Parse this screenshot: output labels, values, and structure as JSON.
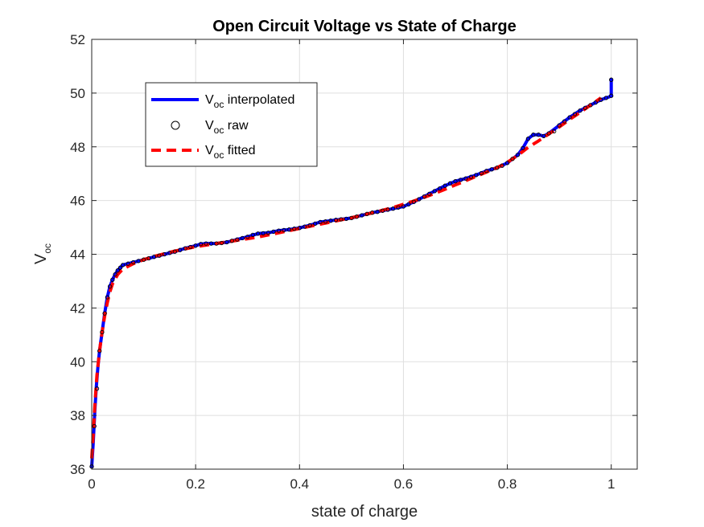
{
  "chart_data": {
    "type": "line",
    "title": "Open Circuit Voltage vs State of Charge",
    "xlabel": "state of charge",
    "ylabel": {
      "main": "V",
      "sub": "oc"
    },
    "xlim": [
      0,
      1.05
    ],
    "ylim": [
      36,
      52
    ],
    "xticks": [
      0,
      0.2,
      0.4,
      0.6,
      0.8,
      1
    ],
    "xtick_labels": [
      "0",
      "0.2",
      "0.4",
      "0.6",
      "0.8",
      "1"
    ],
    "yticks": [
      36,
      38,
      40,
      42,
      44,
      46,
      48,
      50,
      52
    ],
    "ytick_labels": [
      "36",
      "38",
      "40",
      "42",
      "44",
      "46",
      "48",
      "50",
      "52"
    ],
    "grid": true,
    "legend_position": "top-left",
    "series": [
      {
        "name": {
          "main": "V",
          "sub": "oc",
          "rest": " interpolated"
        },
        "style": "solid-line",
        "color": "#0000ff",
        "x": [
          0,
          0.003,
          0.006,
          0.009,
          0.012,
          0.015,
          0.02,
          0.025,
          0.03,
          0.035,
          0.04,
          0.045,
          0.05,
          0.055,
          0.06,
          0.065,
          0.07,
          0.08,
          0.09,
          0.1,
          0.12,
          0.14,
          0.16,
          0.18,
          0.2,
          0.21,
          0.22,
          0.24,
          0.26,
          0.28,
          0.3,
          0.32,
          0.34,
          0.36,
          0.38,
          0.4,
          0.42,
          0.44,
          0.46,
          0.48,
          0.5,
          0.52,
          0.54,
          0.56,
          0.58,
          0.6,
          0.62,
          0.64,
          0.66,
          0.68,
          0.7,
          0.72,
          0.74,
          0.76,
          0.78,
          0.8,
          0.81,
          0.82,
          0.83,
          0.84,
          0.85,
          0.86,
          0.87,
          0.88,
          0.89,
          0.9,
          0.92,
          0.94,
          0.96,
          0.98,
          0.99,
          0.995,
          1.0,
          1.0
        ],
        "y": [
          36.1,
          37.0,
          38.2,
          39.1,
          39.8,
          40.4,
          41.1,
          41.8,
          42.4,
          42.8,
          43.05,
          43.25,
          43.4,
          43.5,
          43.6,
          43.63,
          43.65,
          43.7,
          43.75,
          43.8,
          43.9,
          44.0,
          44.1,
          44.22,
          44.32,
          44.38,
          44.4,
          44.4,
          44.45,
          44.55,
          44.65,
          44.77,
          44.8,
          44.88,
          44.92,
          44.98,
          45.08,
          45.2,
          45.25,
          45.3,
          45.35,
          45.45,
          45.55,
          45.62,
          45.7,
          45.78,
          45.95,
          46.15,
          46.35,
          46.55,
          46.72,
          46.82,
          46.95,
          47.1,
          47.22,
          47.4,
          47.55,
          47.7,
          47.95,
          48.3,
          48.45,
          48.45,
          48.4,
          48.5,
          48.65,
          48.8,
          49.1,
          49.35,
          49.55,
          49.75,
          49.82,
          49.85,
          49.9,
          50.5
        ]
      },
      {
        "name": {
          "main": "V",
          "sub": "oc",
          "rest": " raw"
        },
        "style": "circle-markers",
        "color": "#000000",
        "x": [
          0,
          0.005,
          0.01,
          0.015,
          0.02,
          0.025,
          0.03,
          0.035,
          0.04,
          0.045,
          0.05,
          0.055,
          0.06,
          0.07,
          0.08,
          0.09,
          0.1,
          0.11,
          0.12,
          0.13,
          0.14,
          0.15,
          0.16,
          0.17,
          0.18,
          0.19,
          0.2,
          0.21,
          0.22,
          0.23,
          0.24,
          0.25,
          0.26,
          0.27,
          0.28,
          0.29,
          0.3,
          0.31,
          0.32,
          0.33,
          0.34,
          0.35,
          0.36,
          0.37,
          0.38,
          0.39,
          0.4,
          0.41,
          0.42,
          0.43,
          0.44,
          0.45,
          0.46,
          0.47,
          0.48,
          0.49,
          0.5,
          0.51,
          0.52,
          0.53,
          0.54,
          0.55,
          0.56,
          0.57,
          0.58,
          0.59,
          0.6,
          0.61,
          0.62,
          0.63,
          0.64,
          0.65,
          0.66,
          0.67,
          0.68,
          0.69,
          0.7,
          0.71,
          0.72,
          0.73,
          0.74,
          0.75,
          0.76,
          0.77,
          0.78,
          0.79,
          0.8,
          0.81,
          0.82,
          0.83,
          0.84,
          0.85,
          0.86,
          0.87,
          0.88,
          0.89,
          0.9,
          0.91,
          0.92,
          0.93,
          0.94,
          0.95,
          0.96,
          0.97,
          0.98,
          0.99,
          1.0,
          1.0
        ],
        "y": [
          36.1,
          37.6,
          39.0,
          40.4,
          41.1,
          41.8,
          42.4,
          42.8,
          43.05,
          43.25,
          43.4,
          43.5,
          43.6,
          43.65,
          43.7,
          43.75,
          43.8,
          43.85,
          43.9,
          43.95,
          44.0,
          44.05,
          44.1,
          44.16,
          44.22,
          44.27,
          44.32,
          44.38,
          44.4,
          44.4,
          44.4,
          44.42,
          44.45,
          44.5,
          44.55,
          44.6,
          44.65,
          44.72,
          44.77,
          44.78,
          44.8,
          44.84,
          44.88,
          44.9,
          44.92,
          44.95,
          44.98,
          45.03,
          45.08,
          45.14,
          45.2,
          45.22,
          45.25,
          45.28,
          45.3,
          45.32,
          45.35,
          45.4,
          45.45,
          45.5,
          45.55,
          45.58,
          45.62,
          45.66,
          45.7,
          45.74,
          45.78,
          45.86,
          45.95,
          46.05,
          46.15,
          46.25,
          46.35,
          46.45,
          46.55,
          46.64,
          46.72,
          46.77,
          46.82,
          46.88,
          46.95,
          47.02,
          47.1,
          47.16,
          47.22,
          47.3,
          47.4,
          47.55,
          47.7,
          47.95,
          48.3,
          48.45,
          48.45,
          48.4,
          48.5,
          48.58,
          48.8,
          48.95,
          49.1,
          49.22,
          49.35,
          49.45,
          49.55,
          49.65,
          49.75,
          49.82,
          49.9,
          50.5
        ]
      },
      {
        "name": {
          "main": "V",
          "sub": "oc",
          "rest": " fitted"
        },
        "style": "dashed-line",
        "color": "#ff0000",
        "x": [
          0,
          0.003,
          0.006,
          0.01,
          0.015,
          0.02,
          0.025,
          0.03,
          0.035,
          0.04,
          0.05,
          0.06,
          0.07,
          0.08,
          0.1,
          0.12,
          0.14,
          0.16,
          0.18,
          0.2,
          0.22,
          0.24,
          0.26,
          0.28,
          0.3,
          0.32,
          0.34,
          0.36,
          0.38,
          0.4,
          0.42,
          0.44,
          0.46,
          0.48,
          0.5,
          0.52,
          0.54,
          0.56,
          0.58,
          0.6,
          0.62,
          0.64,
          0.66,
          0.68,
          0.7,
          0.72,
          0.74,
          0.76,
          0.78,
          0.8,
          0.82,
          0.84,
          0.86,
          0.88,
          0.9,
          0.92,
          0.94,
          0.96,
          0.98
        ],
        "y": [
          36.4,
          37.3,
          38.4,
          39.5,
          40.4,
          41.1,
          41.7,
          42.2,
          42.6,
          42.9,
          43.25,
          43.45,
          43.55,
          43.65,
          43.8,
          43.92,
          44.02,
          44.12,
          44.2,
          44.28,
          44.34,
          44.4,
          44.46,
          44.52,
          44.58,
          44.64,
          44.72,
          44.8,
          44.88,
          44.96,
          45.04,
          45.12,
          45.2,
          45.28,
          45.36,
          45.45,
          45.54,
          45.64,
          45.74,
          45.86,
          45.98,
          46.12,
          46.26,
          46.42,
          46.58,
          46.74,
          46.9,
          47.06,
          47.22,
          47.42,
          47.68,
          47.98,
          48.22,
          48.48,
          48.74,
          49.02,
          49.28,
          49.55,
          49.82
        ]
      }
    ]
  }
}
